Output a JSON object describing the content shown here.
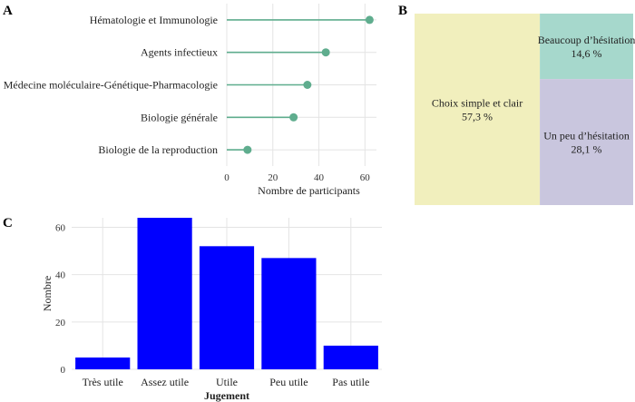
{
  "chart_data": [
    {
      "panel": "A",
      "type": "lollipop",
      "orientation": "horizontal",
      "xlabel": "Nombre de participants",
      "xlim": [
        0,
        65
      ],
      "xticks": [
        0,
        20,
        40,
        60
      ],
      "categories": [
        "Hématologie et Immunologie",
        "Agents infectieux",
        "Médecine moléculaire-Génétique-Pharmacologie",
        "Biologie générale",
        "Biologie de la reproduction"
      ],
      "values": [
        62,
        43,
        35,
        29,
        9
      ],
      "color": "#5fad8e"
    },
    {
      "panel": "B",
      "type": "treemap",
      "items": [
        {
          "label": "Choix simple et clair",
          "value_label": "57,3 %",
          "value": 57.3,
          "color": "#f1efbd"
        },
        {
          "label": "Beaucoup d’hésitation",
          "value_label": "14,6 %",
          "value": 14.6,
          "color": "#a6d8cc"
        },
        {
          "label": "Un peu d’hésitation",
          "value_label": "28,1 %",
          "value": 28.1,
          "color": "#c9c6de"
        }
      ]
    },
    {
      "panel": "C",
      "type": "bar",
      "xlabel": "Jugement",
      "ylabel": "Nombre",
      "ylim": [
        0,
        64
      ],
      "yticks": [
        0,
        20,
        40,
        60
      ],
      "categories": [
        "Très utile",
        "Assez utile",
        "Utile",
        "Peu utile",
        "Pas utile"
      ],
      "values": [
        5,
        64,
        52,
        47,
        10
      ],
      "color": "#0000ff"
    }
  ]
}
